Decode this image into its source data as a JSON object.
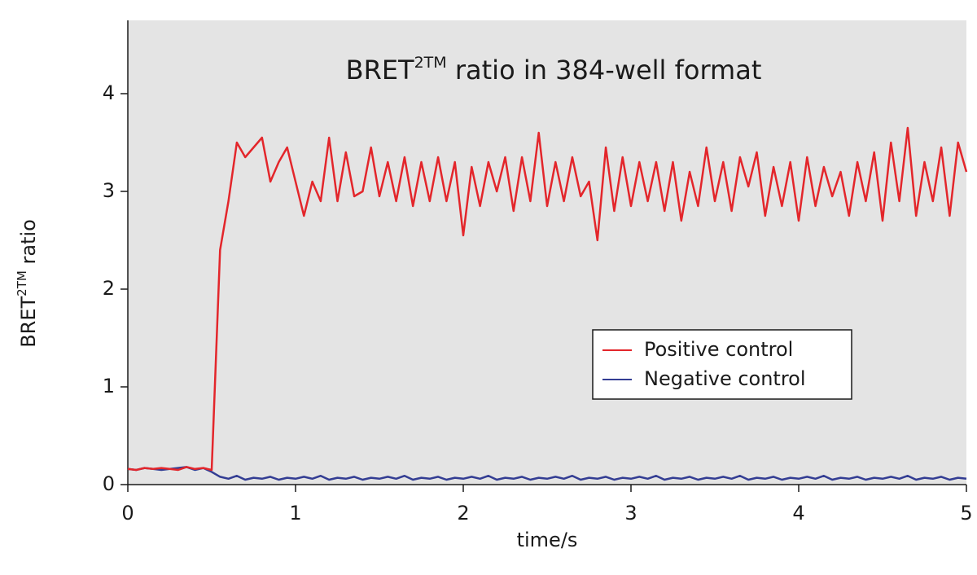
{
  "chart_data": {
    "type": "line",
    "title": {
      "main": "BRET",
      "sup": "2TM",
      "rest": " ratio in 384-well format"
    },
    "ylabel": {
      "main": "BRET",
      "sup": "2TM",
      "rest": " ratio"
    },
    "xlabel": "time/s",
    "x": [
      0,
      0.05,
      0.1,
      0.15,
      0.2,
      0.25,
      0.3,
      0.35,
      0.4,
      0.45,
      0.5,
      0.55,
      0.6,
      0.65,
      0.7,
      0.75,
      0.8,
      0.85,
      0.9,
      0.95,
      1,
      1.05,
      1.1,
      1.15,
      1.2,
      1.25,
      1.3,
      1.35,
      1.4,
      1.45,
      1.5,
      1.55,
      1.6,
      1.65,
      1.7,
      1.75,
      1.8,
      1.85,
      1.9,
      1.95,
      2,
      2.05,
      2.1,
      2.15,
      2.2,
      2.25,
      2.3,
      2.35,
      2.4,
      2.45,
      2.5,
      2.55,
      2.6,
      2.65,
      2.7,
      2.75,
      2.8,
      2.85,
      2.9,
      2.95,
      3,
      3.05,
      3.1,
      3.15,
      3.2,
      3.25,
      3.3,
      3.35,
      3.4,
      3.45,
      3.5,
      3.55,
      3.6,
      3.65,
      3.7,
      3.75,
      3.8,
      3.85,
      3.9,
      3.95,
      4,
      4.05,
      4.1,
      4.15,
      4.2,
      4.25,
      4.3,
      4.35,
      4.4,
      4.45,
      4.5,
      4.55,
      4.6,
      4.65,
      4.7,
      4.75,
      4.8,
      4.85,
      4.9,
      4.95,
      5
    ],
    "series": [
      {
        "name": "Positive control",
        "color": "#e3262b",
        "values": [
          0.16,
          0.15,
          0.17,
          0.16,
          0.17,
          0.16,
          0.15,
          0.18,
          0.16,
          0.17,
          0.15,
          2.4,
          2.9,
          3.5,
          3.35,
          3.45,
          3.55,
          3.1,
          3.3,
          3.45,
          3.1,
          2.75,
          3.1,
          2.9,
          3.55,
          2.9,
          3.4,
          2.95,
          3.0,
          3.45,
          2.95,
          3.3,
          2.9,
          3.35,
          2.85,
          3.3,
          2.9,
          3.35,
          2.9,
          3.3,
          2.55,
          3.25,
          2.85,
          3.3,
          3.0,
          3.35,
          2.8,
          3.35,
          2.9,
          3.6,
          2.85,
          3.3,
          2.9,
          3.35,
          2.95,
          3.1,
          2.5,
          3.45,
          2.8,
          3.35,
          2.85,
          3.3,
          2.9,
          3.3,
          2.8,
          3.3,
          2.7,
          3.2,
          2.85,
          3.45,
          2.9,
          3.3,
          2.8,
          3.35,
          3.05,
          3.4,
          2.75,
          3.25,
          2.85,
          3.3,
          2.7,
          3.35,
          2.85,
          3.25,
          2.95,
          3.2,
          2.75,
          3.3,
          2.9,
          3.4,
          2.7,
          3.5,
          2.9,
          3.65,
          2.75,
          3.3,
          2.9,
          3.45,
          2.75,
          3.5,
          3.2
        ]
      },
      {
        "name": "Negative control",
        "color": "#333d93",
        "values": [
          0.16,
          0.15,
          0.17,
          0.16,
          0.15,
          0.16,
          0.17,
          0.18,
          0.15,
          0.17,
          0.13,
          0.08,
          0.06,
          0.09,
          0.05,
          0.07,
          0.06,
          0.08,
          0.05,
          0.07,
          0.06,
          0.08,
          0.06,
          0.09,
          0.05,
          0.07,
          0.06,
          0.08,
          0.05,
          0.07,
          0.06,
          0.08,
          0.06,
          0.09,
          0.05,
          0.07,
          0.06,
          0.08,
          0.05,
          0.07,
          0.06,
          0.08,
          0.06,
          0.09,
          0.05,
          0.07,
          0.06,
          0.08,
          0.05,
          0.07,
          0.06,
          0.08,
          0.06,
          0.09,
          0.05,
          0.07,
          0.06,
          0.08,
          0.05,
          0.07,
          0.06,
          0.08,
          0.06,
          0.09,
          0.05,
          0.07,
          0.06,
          0.08,
          0.05,
          0.07,
          0.06,
          0.08,
          0.06,
          0.09,
          0.05,
          0.07,
          0.06,
          0.08,
          0.05,
          0.07,
          0.06,
          0.08,
          0.06,
          0.09,
          0.05,
          0.07,
          0.06,
          0.08,
          0.05,
          0.07,
          0.06,
          0.08,
          0.06,
          0.09,
          0.05,
          0.07,
          0.06,
          0.08,
          0.05,
          0.07,
          0.06
        ]
      }
    ],
    "xlim": [
      0,
      5
    ],
    "xticks": [
      0,
      1,
      2,
      3,
      4,
      5
    ],
    "ylim": [
      0,
      4.75
    ],
    "yticks": [
      0,
      1,
      2,
      3,
      4
    ],
    "background": "#e4e4e4",
    "legend": "lower right"
  }
}
